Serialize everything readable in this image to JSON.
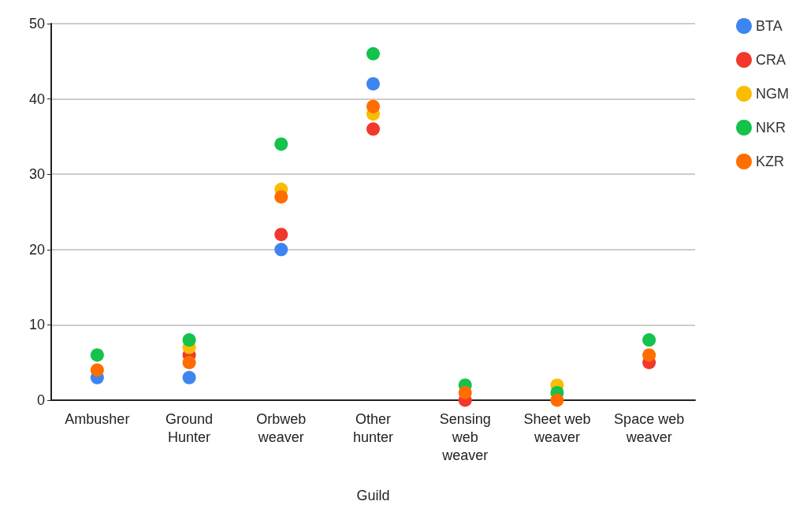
{
  "chart_data": {
    "type": "scatter",
    "xlabel": "Guild",
    "categories": [
      "Ambusher",
      "Ground Hunter",
      "Orbweb weaver",
      "Other hunter",
      "Sensing web weaver",
      "Sheet web weaver",
      "Space web weaver"
    ],
    "series": [
      {
        "name": "BTA",
        "color": "#3d85f0",
        "values": [
          3,
          3,
          20,
          42,
          null,
          null,
          null
        ]
      },
      {
        "name": "CRA",
        "color": "#f2382c",
        "values": [
          null,
          6,
          22,
          36,
          0,
          null,
          5
        ]
      },
      {
        "name": "NGM",
        "color": "#fbbc04",
        "values": [
          null,
          7,
          28,
          38,
          null,
          2,
          null
        ]
      },
      {
        "name": "NKR",
        "color": "#14c24c",
        "values": [
          6,
          8,
          34,
          46,
          2,
          1,
          8
        ]
      },
      {
        "name": "KZR",
        "color": "#ff6d00",
        "values": [
          4,
          5,
          27,
          39,
          1,
          0,
          6
        ]
      }
    ],
    "ylim": [
      0,
      50
    ],
    "yticks": [
      0,
      10,
      20,
      30,
      40,
      50
    ],
    "grid": "y",
    "legend": "top right",
    "marker": "circle"
  }
}
